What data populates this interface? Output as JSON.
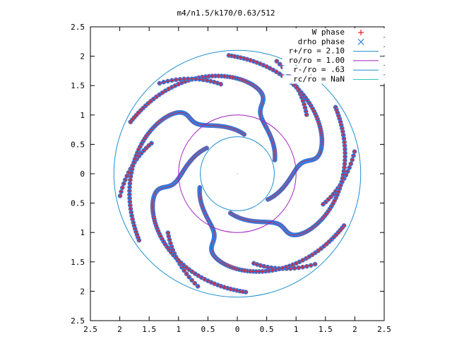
{
  "chart_data": {
    "type": "scatter",
    "title": "m4/n1.5/k170/0.63/512",
    "xlim": [
      -2.5,
      2.5
    ],
    "ylim": [
      -2.5,
      2.5
    ],
    "x_ticks": [
      -2.5,
      -2,
      -1.5,
      -1,
      -0.5,
      0,
      0.5,
      1,
      1.5,
      2,
      2.5
    ],
    "x_tick_labels": [
      "2.5",
      "2",
      "1.5",
      "1",
      "0.5",
      "0",
      "0.5",
      "1",
      "1.5",
      "2",
      "2.5"
    ],
    "y_ticks": [
      2.5,
      2,
      1.5,
      1,
      0.5,
      0,
      -0.5,
      -1,
      -1.5,
      -2,
      -2.5
    ],
    "y_tick_labels": [
      "2.5",
      "2",
      "1.5",
      "1",
      "0.5",
      "0",
      "0.5",
      "1",
      "1.5",
      "2",
      "2.5"
    ],
    "grid": false,
    "legend_position": "top-right",
    "series": [
      {
        "name": "W phase",
        "marker": "plus",
        "color": "#e0202a",
        "description": "six-armed spiral point pattern (same locus as drho phase)"
      },
      {
        "name": "drho phase",
        "marker": "cross",
        "color": "#2f7fe8",
        "description": "six-armed spiral point pattern (same locus as W phase)"
      },
      {
        "name": "r+/ro = 2.10",
        "type": "circle",
        "radius": 2.1,
        "color": "#1f8fd0"
      },
      {
        "name": "ro/ro = 1.00",
        "type": "circle",
        "radius": 1.0,
        "color": "#a020c0"
      },
      {
        "name": "r-/ro = .63",
        "type": "circle",
        "radius": 0.63,
        "color": "#1f8fd0"
      },
      {
        "name": "rc/ro = NaN",
        "type": "circle",
        "radius": null,
        "color": "#30c8c8"
      }
    ]
  }
}
